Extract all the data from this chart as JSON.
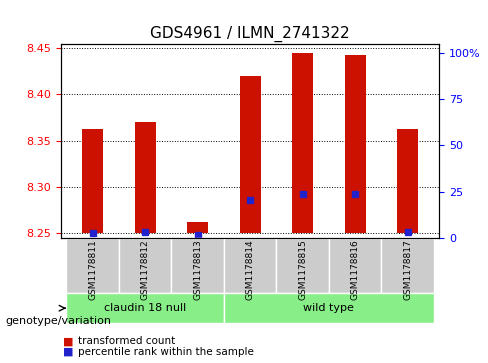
{
  "title": "GDS4961 / ILMN_2741322",
  "samples": [
    "GSM1178811",
    "GSM1178812",
    "GSM1178813",
    "GSM1178814",
    "GSM1178815",
    "GSM1178816",
    "GSM1178817"
  ],
  "transformed_count": [
    8.363,
    8.37,
    8.262,
    8.42,
    8.445,
    8.443,
    8.363
  ],
  "percentile_rank": [
    2.5,
    3.5,
    1.5,
    20.5,
    23.5,
    23.5,
    3.5
  ],
  "baseline": 8.25,
  "ylim_left": [
    8.245,
    8.455
  ],
  "ylim_right": [
    0,
    105
  ],
  "yticks_left": [
    8.25,
    8.3,
    8.35,
    8.4,
    8.45
  ],
  "yticks_right": [
    0,
    25,
    50,
    75,
    100
  ],
  "ytick_labels_right": [
    "0",
    "25",
    "50",
    "75",
    "100%"
  ],
  "bar_color": "#cc1100",
  "blue_color": "#2222cc",
  "group1_label": "claudin 18 null",
  "group2_label": "wild type",
  "group1_indices": [
    0,
    1,
    2
  ],
  "group2_indices": [
    3,
    4,
    5,
    6
  ],
  "group_bg_color": "#88ee88",
  "xlabel_label": "genotype/variation",
  "legend_label1": "transformed count",
  "legend_label2": "percentile rank within the sample",
  "bar_width": 0.4,
  "tick_bg_color": "#cccccc"
}
